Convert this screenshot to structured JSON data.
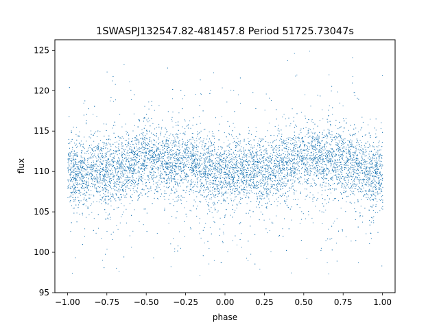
{
  "chart_data": {
    "type": "scatter",
    "title": "1SWASPJ132547.82-481457.8 Period 51725.73047s",
    "xlabel": "phase",
    "ylabel": "flux",
    "xlim": [
      -1.08,
      1.08
    ],
    "ylim": [
      95,
      126.3
    ],
    "xticks": [
      -1.0,
      -0.75,
      -0.5,
      -0.25,
      0.0,
      0.25,
      0.5,
      0.75,
      1.0
    ],
    "xtick_labels": [
      "−1.00",
      "−0.75",
      "−0.50",
      "−0.25",
      "0.00",
      "0.25",
      "0.50",
      "0.75",
      "1.00"
    ],
    "yticks": [
      95,
      100,
      105,
      110,
      115,
      120,
      125
    ],
    "ytick_labels": [
      "95",
      "100",
      "105",
      "110",
      "115",
      "120",
      "125"
    ],
    "grid": false,
    "marker_color": "#1f77b4",
    "series": [
      {
        "phase_range": [
          -1.0,
          1.0
        ],
        "flux_curve_phase": [
          -1.0,
          -0.75,
          -0.5,
          -0.25,
          0.0,
          0.25,
          0.5,
          0.75,
          1.0
        ],
        "flux_curve_value": [
          109.8,
          110.2,
          111.5,
          111.2,
          109.6,
          110.3,
          111.5,
          111.2,
          109.8
        ],
        "typical_spread": 2.0
      }
    ]
  }
}
